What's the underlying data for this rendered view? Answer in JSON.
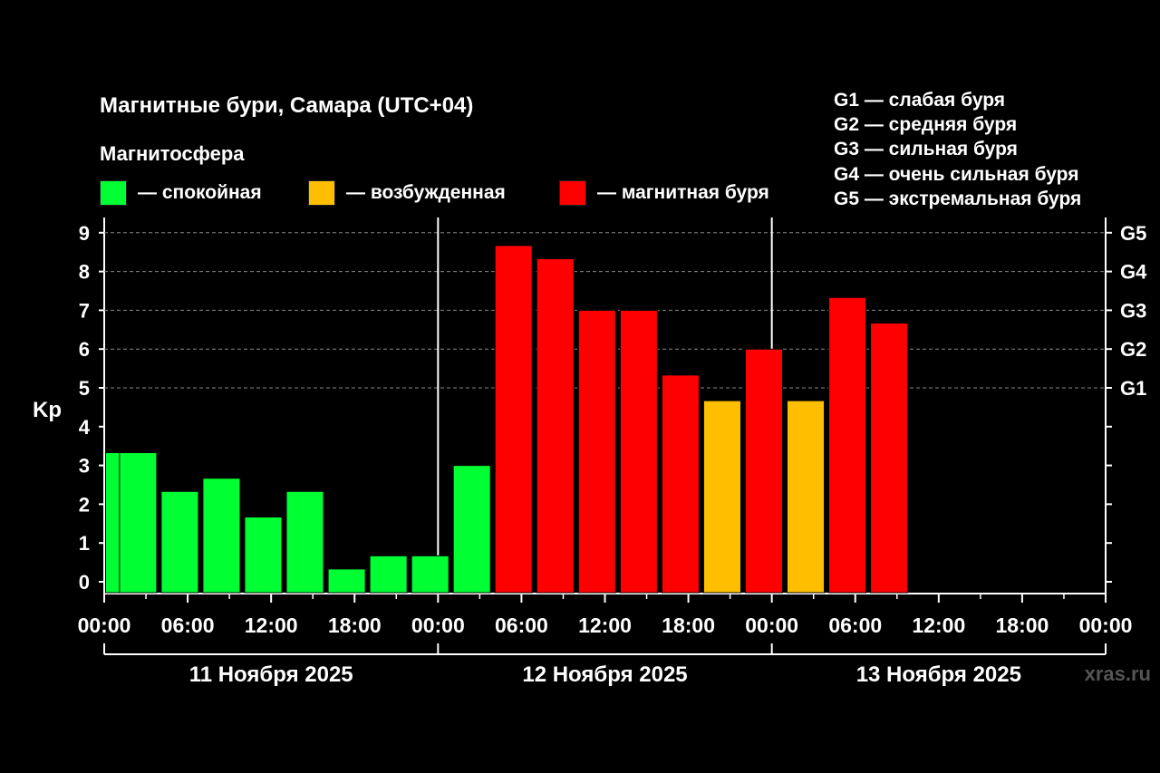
{
  "title": "Магнитные бури, Самара (UTC+04)",
  "subtitle": "Магнитосфера",
  "legend": [
    {
      "label": "— спокойная",
      "color": "#00ff33"
    },
    {
      "label": "— возбужденная",
      "color": "#ffbf00"
    },
    {
      "label": "— магнитная буря",
      "color": "#ff0000"
    }
  ],
  "g_legend": [
    "G1 — слабая буря",
    "G2 — средняя буря",
    "G3 — сильная буря",
    "G4 — очень сильная буря",
    "G5 — экстремальная буря"
  ],
  "watermark": "xras.ru",
  "chart_data": {
    "type": "bar",
    "ylabel": "Kp",
    "ylim": [
      0,
      9
    ],
    "yticks": [
      "0",
      "1",
      "2",
      "3",
      "4",
      "5",
      "6",
      "7",
      "8",
      "9"
    ],
    "right_ticks": [
      {
        "value": 5,
        "label": "G1"
      },
      {
        "value": 6,
        "label": "G2"
      },
      {
        "value": 7,
        "label": "G3"
      },
      {
        "value": 8,
        "label": "G4"
      },
      {
        "value": 9,
        "label": "G5"
      }
    ],
    "xtick_labels": [
      "00:00",
      "06:00",
      "12:00",
      "18:00",
      "00:00",
      "06:00",
      "12:00",
      "18:00",
      "00:00",
      "06:00",
      "12:00",
      "18:00",
      "00:00"
    ],
    "days": [
      "11 Ноября 2025",
      "12 Ноября 2025",
      "13 Ноября 2025"
    ],
    "bars": [
      {
        "start_h": 0,
        "value": 3.33,
        "level": "quiet"
      },
      {
        "start_h": 1,
        "value": 3.33,
        "level": "quiet"
      },
      {
        "start_h": 4,
        "value": 2.33,
        "level": "quiet"
      },
      {
        "start_h": 7,
        "value": 2.67,
        "level": "quiet"
      },
      {
        "start_h": 10,
        "value": 1.67,
        "level": "quiet"
      },
      {
        "start_h": 13,
        "value": 2.33,
        "level": "quiet"
      },
      {
        "start_h": 16,
        "value": 0.33,
        "level": "quiet"
      },
      {
        "start_h": 19,
        "value": 0.67,
        "level": "quiet"
      },
      {
        "start_h": 22,
        "value": 0.67,
        "level": "quiet"
      },
      {
        "start_h": 25,
        "value": 3.0,
        "level": "quiet"
      },
      {
        "start_h": 28,
        "value": 8.67,
        "level": "storm"
      },
      {
        "start_h": 31,
        "value": 8.33,
        "level": "storm"
      },
      {
        "start_h": 34,
        "value": 7.0,
        "level": "storm"
      },
      {
        "start_h": 37,
        "value": 7.0,
        "level": "storm"
      },
      {
        "start_h": 40,
        "value": 5.33,
        "level": "storm"
      },
      {
        "start_h": 43,
        "value": 4.67,
        "level": "active"
      },
      {
        "start_h": 46,
        "value": 6.0,
        "level": "storm"
      },
      {
        "start_h": 49,
        "value": 4.67,
        "level": "active"
      },
      {
        "start_h": 52,
        "value": 7.33,
        "level": "storm"
      },
      {
        "start_h": 55,
        "value": 6.67,
        "level": "storm"
      }
    ],
    "level_colors": {
      "quiet": "#00ff33",
      "active": "#ffbf00",
      "storm": "#ff0000"
    }
  }
}
